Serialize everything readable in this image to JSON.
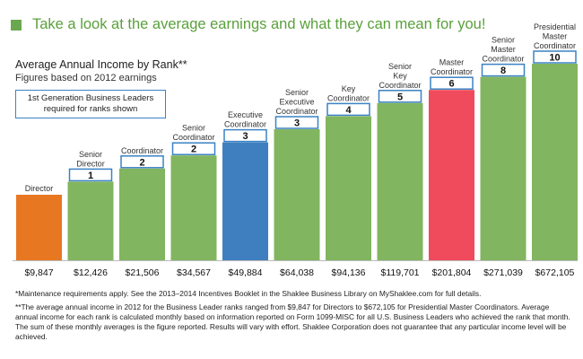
{
  "headline": {
    "text": "Take a look at the average earnings and what they can mean for you!",
    "square_color": "#6aa84f",
    "color": "#5aa03c"
  },
  "chart_title": "Average Annual Income by Rank**",
  "chart_subtitle": "Figures based on 2012 earnings",
  "note_box": "1st Generation Business Leaders required for ranks shown",
  "footnotes": [
    "*Maintenance requirements apply. See the 2013–2014 Incentives Booklet in the Shaklee Business Library on MyShaklee.com for full details.",
    "**The average annual income in 2012 for the Business Leader ranks ranged from $9,847 for Directors to $672,105 for Presidential Master Coordinators. Average annual income for each rank is calculated monthly based on information reported on Form 1099-MISC for all U.S. Business Leaders who achieved the rank that month. The sum of these monthly averages is the figure reported. Results will vary with effort. Shaklee Corporation does not guarantee that any particular income level will be achieved."
  ],
  "chart_data": {
    "type": "bar",
    "categories": [
      "Director",
      "Senior Director",
      "Coordinator",
      "Senior Coordinator",
      "Executive Coordinator",
      "Senior Executive Coordinator",
      "Key Coordinator",
      "Senior Key Coordinator",
      "Master Coordinator",
      "Senior Master Coordinator",
      "Presidential Master Coordinator"
    ],
    "category_lines": [
      [
        "Director"
      ],
      [
        "Senior",
        "Director"
      ],
      [
        "Coordinator"
      ],
      [
        "Senior",
        "Coordinator"
      ],
      [
        "Executive",
        "Coordinator"
      ],
      [
        "Senior",
        "Executive",
        "Coordinator"
      ],
      [
        "Key",
        "Coordinator"
      ],
      [
        "Senior",
        "Key",
        "Coordinator"
      ],
      [
        "Master",
        "Coordinator"
      ],
      [
        "Senior",
        "Master",
        "Coordinator"
      ],
      [
        "Presidential",
        "Master",
        "Coordinator"
      ]
    ],
    "income_labels": [
      "$9,847",
      "$12,426",
      "$21,506",
      "$34,567",
      "$49,884",
      "$64,038",
      "$94,136",
      "$119,701",
      "$201,804",
      "$271,039",
      "$672,105"
    ],
    "leaders_required": [
      null,
      1,
      2,
      2,
      3,
      3,
      4,
      5,
      6,
      8,
      10
    ],
    "bar_levels": [
      1,
      2,
      3,
      4,
      5,
      6,
      7,
      8,
      9,
      10,
      11
    ],
    "bar_colors": [
      "#e87722",
      "#82b55f",
      "#82b55f",
      "#82b55f",
      "#3f7fbf",
      "#82b55f",
      "#82b55f",
      "#82b55f",
      "#ef4b5c",
      "#82b55f",
      "#82b55f"
    ],
    "bar_color_default": "#82b55f"
  }
}
